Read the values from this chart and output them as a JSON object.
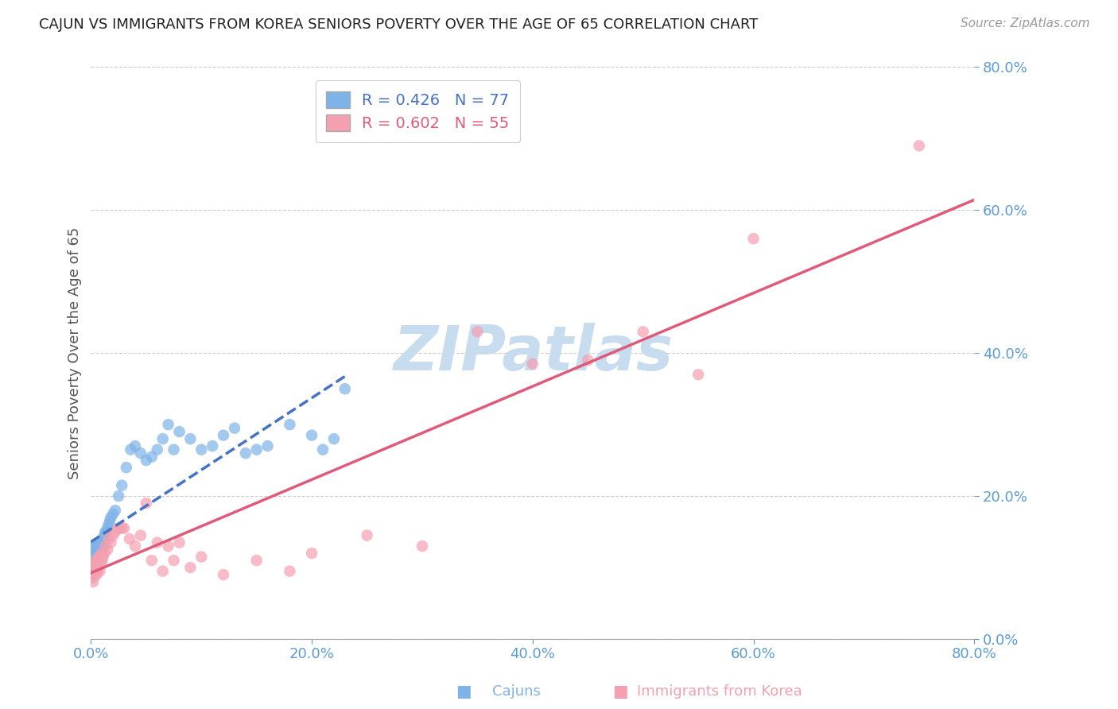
{
  "title": "CAJUN VS IMMIGRANTS FROM KOREA SENIORS POVERTY OVER THE AGE OF 65 CORRELATION CHART",
  "source": "Source: ZipAtlas.com",
  "ylabel": "Seniors Poverty Over the Age of 65",
  "legend_label1": "Cajuns",
  "legend_label2": "Immigrants from Korea",
  "R1": 0.426,
  "N1": 77,
  "R2": 0.602,
  "N2": 55,
  "xlim": [
    0.0,
    0.8
  ],
  "ylim": [
    0.0,
    0.8
  ],
  "xticks": [
    0.0,
    0.2,
    0.4,
    0.6,
    0.8
  ],
  "yticks": [
    0.0,
    0.2,
    0.4,
    0.6,
    0.8
  ],
  "color_cajun": "#7EB3E8",
  "color_korea": "#F4A0B0",
  "color_line_cajun": "#4472C4",
  "color_line_korea": "#E05A7A",
  "color_tick_label": "#5B9BD5",
  "watermark_text": "ZIPatlas",
  "watermark_color": "#C8DCF0",
  "background_color": "#FFFFFF",
  "cajun_x": [
    0.001,
    0.001,
    0.001,
    0.001,
    0.002,
    0.002,
    0.002,
    0.002,
    0.003,
    0.003,
    0.003,
    0.003,
    0.003,
    0.004,
    0.004,
    0.004,
    0.004,
    0.004,
    0.005,
    0.005,
    0.005,
    0.005,
    0.005,
    0.006,
    0.006,
    0.006,
    0.007,
    0.007,
    0.007,
    0.007,
    0.008,
    0.008,
    0.008,
    0.009,
    0.009,
    0.009,
    0.01,
    0.01,
    0.011,
    0.011,
    0.012,
    0.012,
    0.013,
    0.013,
    0.014,
    0.015,
    0.016,
    0.017,
    0.018,
    0.02,
    0.022,
    0.025,
    0.028,
    0.032,
    0.036,
    0.04,
    0.045,
    0.05,
    0.055,
    0.06,
    0.065,
    0.07,
    0.075,
    0.08,
    0.09,
    0.1,
    0.11,
    0.12,
    0.13,
    0.14,
    0.15,
    0.16,
    0.18,
    0.2,
    0.21,
    0.22,
    0.23
  ],
  "cajun_y": [
    0.115,
    0.12,
    0.125,
    0.13,
    0.105,
    0.11,
    0.12,
    0.13,
    0.11,
    0.115,
    0.12,
    0.125,
    0.13,
    0.1,
    0.11,
    0.115,
    0.12,
    0.13,
    0.105,
    0.11,
    0.115,
    0.12,
    0.125,
    0.11,
    0.115,
    0.12,
    0.115,
    0.12,
    0.125,
    0.13,
    0.12,
    0.125,
    0.13,
    0.12,
    0.125,
    0.135,
    0.125,
    0.135,
    0.13,
    0.14,
    0.135,
    0.145,
    0.14,
    0.15,
    0.15,
    0.155,
    0.16,
    0.165,
    0.17,
    0.175,
    0.18,
    0.2,
    0.215,
    0.24,
    0.265,
    0.27,
    0.26,
    0.25,
    0.255,
    0.265,
    0.28,
    0.3,
    0.265,
    0.29,
    0.28,
    0.265,
    0.27,
    0.285,
    0.295,
    0.26,
    0.265,
    0.27,
    0.3,
    0.285,
    0.265,
    0.28,
    0.35
  ],
  "korea_x": [
    0.001,
    0.001,
    0.002,
    0.002,
    0.003,
    0.003,
    0.004,
    0.004,
    0.005,
    0.005,
    0.006,
    0.006,
    0.007,
    0.007,
    0.008,
    0.008,
    0.009,
    0.01,
    0.01,
    0.011,
    0.012,
    0.013,
    0.015,
    0.016,
    0.018,
    0.02,
    0.022,
    0.025,
    0.028,
    0.03,
    0.035,
    0.04,
    0.045,
    0.05,
    0.055,
    0.06,
    0.065,
    0.07,
    0.075,
    0.08,
    0.09,
    0.1,
    0.12,
    0.15,
    0.18,
    0.2,
    0.25,
    0.3,
    0.35,
    0.4,
    0.45,
    0.5,
    0.55,
    0.6,
    0.75
  ],
  "korea_y": [
    0.085,
    0.095,
    0.08,
    0.1,
    0.09,
    0.105,
    0.095,
    0.11,
    0.09,
    0.105,
    0.095,
    0.11,
    0.1,
    0.115,
    0.095,
    0.115,
    0.105,
    0.11,
    0.12,
    0.115,
    0.12,
    0.13,
    0.125,
    0.14,
    0.135,
    0.145,
    0.15,
    0.155,
    0.155,
    0.155,
    0.14,
    0.13,
    0.145,
    0.19,
    0.11,
    0.135,
    0.095,
    0.13,
    0.11,
    0.135,
    0.1,
    0.115,
    0.09,
    0.11,
    0.095,
    0.12,
    0.145,
    0.13,
    0.43,
    0.385,
    0.39,
    0.43,
    0.37,
    0.56,
    0.69
  ]
}
